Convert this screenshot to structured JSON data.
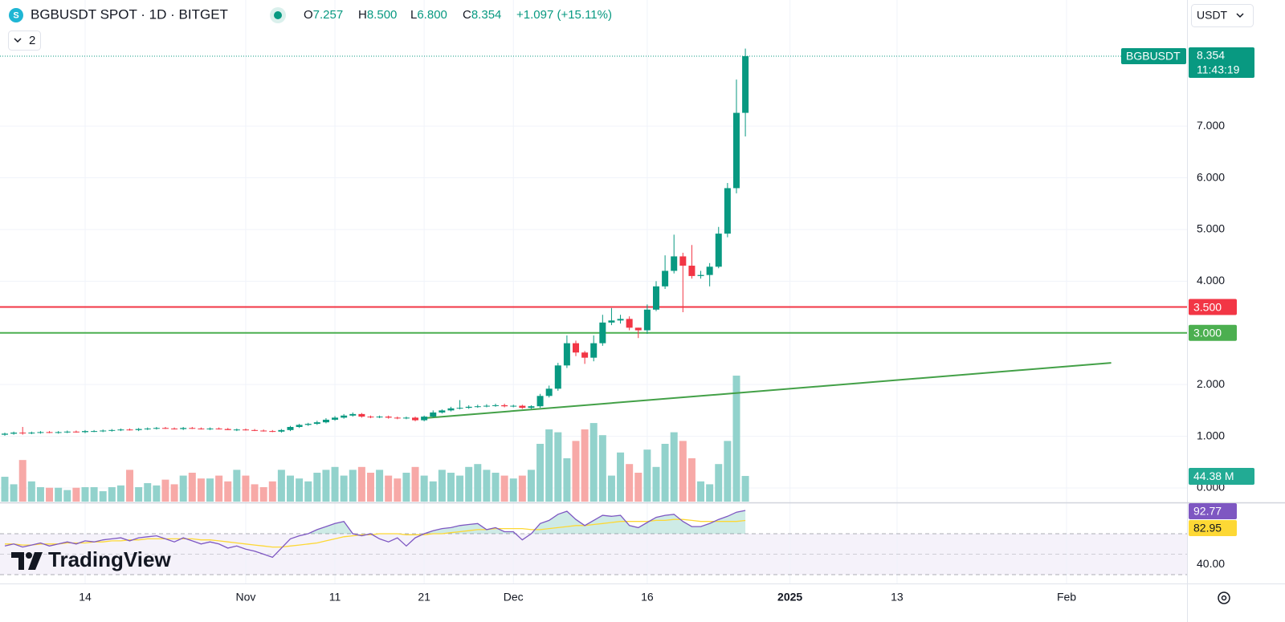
{
  "header": {
    "symbol": "BGBUSDT SPOT · 1D · BITGET",
    "ohlc": [
      {
        "key": "O",
        "value": "7.257"
      },
      {
        "key": "H",
        "value": "8.500"
      },
      {
        "key": "L",
        "value": "6.800"
      },
      {
        "key": "C",
        "value": "8.354"
      }
    ],
    "change": "+1.097 (+15.11%)",
    "indicators": "2",
    "currency": "USDT"
  },
  "branding": "TradingView",
  "chart_data": {
    "type": "candlestick",
    "open": [
      1.03,
      1.05,
      1.07,
      1.06,
      1.07,
      1.08,
      1.07,
      1.08,
      1.09,
      1.08,
      1.1,
      1.1,
      1.11,
      1.12,
      1.13,
      1.12,
      1.14,
      1.15,
      1.16,
      1.15,
      1.14,
      1.16,
      1.15,
      1.14,
      1.15,
      1.14,
      1.12,
      1.13,
      1.12,
      1.11,
      1.1,
      1.09,
      1.12,
      1.18,
      1.22,
      1.24,
      1.27,
      1.32,
      1.36,
      1.4,
      1.43,
      1.38,
      1.37,
      1.38,
      1.36,
      1.35,
      1.36,
      1.31,
      1.38,
      1.46,
      1.5,
      1.54,
      1.55,
      1.57,
      1.58,
      1.59,
      1.6,
      1.58,
      1.59,
      1.55,
      1.58,
      1.78,
      1.92,
      2.37,
      2.8,
      2.62,
      2.52,
      2.8,
      3.2,
      3.24,
      3.27,
      3.1,
      3.05,
      3.45,
      3.9,
      4.2,
      4.48,
      4.3,
      4.1,
      4.12,
      4.28,
      4.92,
      5.8,
      7.257
    ],
    "high": [
      1.07,
      1.09,
      1.18,
      1.09,
      1.1,
      1.1,
      1.1,
      1.11,
      1.11,
      1.12,
      1.12,
      1.13,
      1.14,
      1.15,
      1.15,
      1.16,
      1.17,
      1.18,
      1.18,
      1.17,
      1.18,
      1.18,
      1.17,
      1.17,
      1.17,
      1.16,
      1.15,
      1.15,
      1.14,
      1.13,
      1.12,
      1.14,
      1.2,
      1.24,
      1.26,
      1.3,
      1.35,
      1.39,
      1.43,
      1.46,
      1.45,
      1.4,
      1.4,
      1.4,
      1.38,
      1.38,
      1.38,
      1.4,
      1.5,
      1.52,
      1.57,
      1.7,
      1.6,
      1.61,
      1.62,
      1.63,
      1.63,
      1.61,
      1.61,
      1.6,
      1.82,
      1.98,
      2.42,
      2.95,
      2.85,
      2.65,
      2.95,
      3.35,
      3.48,
      3.35,
      3.32,
      3.1,
      3.55,
      4.0,
      4.5,
      4.9,
      4.55,
      4.7,
      4.2,
      4.35,
      5.05,
      5.9,
      7.9,
      8.5
    ],
    "low": [
      1.01,
      1.03,
      1.03,
      1.04,
      1.05,
      1.06,
      1.05,
      1.06,
      1.07,
      1.06,
      1.08,
      1.08,
      1.09,
      1.1,
      1.11,
      1.1,
      1.12,
      1.13,
      1.14,
      1.13,
      1.12,
      1.14,
      1.13,
      1.12,
      1.13,
      1.12,
      1.1,
      1.11,
      1.1,
      1.09,
      1.08,
      1.07,
      1.1,
      1.16,
      1.2,
      1.22,
      1.25,
      1.3,
      1.34,
      1.38,
      1.36,
      1.35,
      1.35,
      1.34,
      1.33,
      1.33,
      1.29,
      1.29,
      1.36,
      1.44,
      1.48,
      1.52,
      1.53,
      1.55,
      1.56,
      1.57,
      1.56,
      1.56,
      1.53,
      1.53,
      1.55,
      1.75,
      1.88,
      2.32,
      2.55,
      2.4,
      2.45,
      2.75,
      3.15,
      3.18,
      3.05,
      2.9,
      2.98,
      3.42,
      3.85,
      4.15,
      3.4,
      4.05,
      4.05,
      3.9,
      4.25,
      4.85,
      5.7,
      6.8
    ],
    "close": [
      1.05,
      1.07,
      1.06,
      1.07,
      1.08,
      1.07,
      1.08,
      1.09,
      1.08,
      1.1,
      1.1,
      1.11,
      1.12,
      1.13,
      1.12,
      1.14,
      1.15,
      1.16,
      1.15,
      1.14,
      1.16,
      1.15,
      1.14,
      1.15,
      1.14,
      1.12,
      1.13,
      1.12,
      1.11,
      1.1,
      1.09,
      1.12,
      1.18,
      1.22,
      1.24,
      1.27,
      1.32,
      1.36,
      1.4,
      1.43,
      1.38,
      1.37,
      1.38,
      1.36,
      1.35,
      1.36,
      1.31,
      1.38,
      1.46,
      1.5,
      1.54,
      1.55,
      1.57,
      1.58,
      1.59,
      1.6,
      1.58,
      1.59,
      1.55,
      1.58,
      1.78,
      1.92,
      2.37,
      2.8,
      2.62,
      2.52,
      2.8,
      3.2,
      3.24,
      3.27,
      3.1,
      3.05,
      3.45,
      3.9,
      4.2,
      4.48,
      4.3,
      4.1,
      4.12,
      4.28,
      4.92,
      5.8,
      7.257,
      8.354
    ],
    "up_color": "#089981",
    "down_color": "#f23645",
    "xlim": [
      -0.54,
      132.5
    ],
    "xticks": [
      {
        "value": 9,
        "label": "14"
      },
      {
        "value": 27,
        "label": "Nov"
      },
      {
        "value": 37,
        "label": "11"
      },
      {
        "value": 47,
        "label": "21"
      },
      {
        "value": 57,
        "label": "Dec"
      },
      {
        "value": 72,
        "label": "16"
      },
      {
        "value": 88,
        "label": "2025"
      },
      {
        "value": 100,
        "label": "13"
      },
      {
        "value": 119,
        "label": "Feb"
      }
    ],
    "ylim": [
      -0.28,
      9.44
    ],
    "yticks": [
      {
        "value": 0,
        "label": "0.000"
      },
      {
        "value": 1,
        "label": "1.000"
      },
      {
        "value": 2,
        "label": "2.000"
      },
      {
        "value": 3,
        "label": "3.000"
      },
      {
        "value": 4,
        "label": "4.000"
      },
      {
        "value": 5,
        "label": "5.000"
      },
      {
        "value": 6,
        "label": "6.000"
      },
      {
        "value": 7,
        "label": "7.000"
      }
    ],
    "grid": true,
    "last_price": {
      "name": "BGBUSDT",
      "countdown": "11:43:19",
      "color": "#089981"
    },
    "volume": {
      "values": [
        43,
        30,
        72,
        35,
        25,
        24,
        24,
        20,
        24,
        25,
        25,
        18,
        25,
        28,
        55,
        25,
        32,
        28,
        38,
        30,
        45,
        50,
        40,
        40,
        45,
        35,
        55,
        45,
        30,
        25,
        35,
        55,
        45,
        40,
        35,
        50,
        55,
        60,
        45,
        55,
        60,
        50,
        55,
        45,
        40,
        50,
        60,
        45,
        35,
        55,
        50,
        45,
        60,
        65,
        55,
        50,
        45,
        40,
        45,
        55,
        100,
        125,
        120,
        75,
        105,
        125,
        136,
        115,
        45,
        85,
        65,
        50,
        90,
        60,
        100,
        120,
        105,
        75,
        35,
        30,
        65,
        105,
        218,
        44.38
      ],
      "last_label": "44.38 M",
      "ylim": [
        0,
        500
      ],
      "up_color": "#92d2cc",
      "down_color": "#f7a9a7",
      "label_color": "#22ab94"
    },
    "levels": [
      {
        "value": 3.5,
        "label": "3.500",
        "color": "#f23645"
      },
      {
        "value": 3.0,
        "label": "3.000",
        "color": "#4caf50"
      }
    ],
    "trendline": {
      "x": [
        47,
        124
      ],
      "values": [
        1.35,
        2.42
      ],
      "color": "#43a047"
    },
    "rsi": {
      "series": [
        {
          "values": [
            58,
            60,
            57,
            59,
            61,
            58,
            60,
            62,
            60,
            63,
            62,
            64,
            65,
            66,
            63,
            66,
            67,
            68,
            65,
            62,
            66,
            63,
            60,
            62,
            60,
            56,
            58,
            55,
            53,
            50,
            47,
            56,
            65,
            68,
            70,
            74,
            77,
            80,
            82,
            70,
            68,
            70,
            65,
            62,
            66,
            58,
            66,
            70,
            73,
            75,
            76,
            78,
            79,
            80,
            74,
            76,
            72,
            72,
            64,
            70,
            80,
            83,
            89,
            92,
            84,
            78,
            83,
            88,
            87,
            88,
            78,
            76,
            81,
            86,
            88,
            89,
            82,
            77,
            77,
            80,
            84,
            87,
            91,
            92.77
          ],
          "color": "#7e57c2"
        },
        {
          "values": [
            60,
            60,
            59,
            59,
            60,
            60,
            60,
            61,
            61,
            61,
            62,
            62,
            63,
            63,
            64,
            64,
            65,
            65,
            65,
            65,
            65,
            65,
            64,
            64,
            63,
            62,
            61,
            60,
            59,
            58,
            57,
            57,
            58,
            59,
            60,
            61,
            63,
            65,
            67,
            68,
            69,
            69,
            70,
            70,
            70,
            69,
            69,
            69,
            70,
            70,
            71,
            72,
            73,
            74,
            74,
            75,
            75,
            75,
            75,
            74,
            74,
            75,
            76,
            77,
            78,
            78,
            79,
            80,
            81,
            82,
            82,
            82,
            82,
            83,
            83,
            84,
            84,
            83,
            82,
            82,
            82,
            82,
            82,
            82.95
          ],
          "color": "#fdd835"
        }
      ],
      "ylim": [
        21.4,
        100.6
      ],
      "yticks": [
        {
          "value": 40,
          "label": "40.00"
        }
      ],
      "bands": [
        70,
        50,
        30
      ]
    }
  }
}
